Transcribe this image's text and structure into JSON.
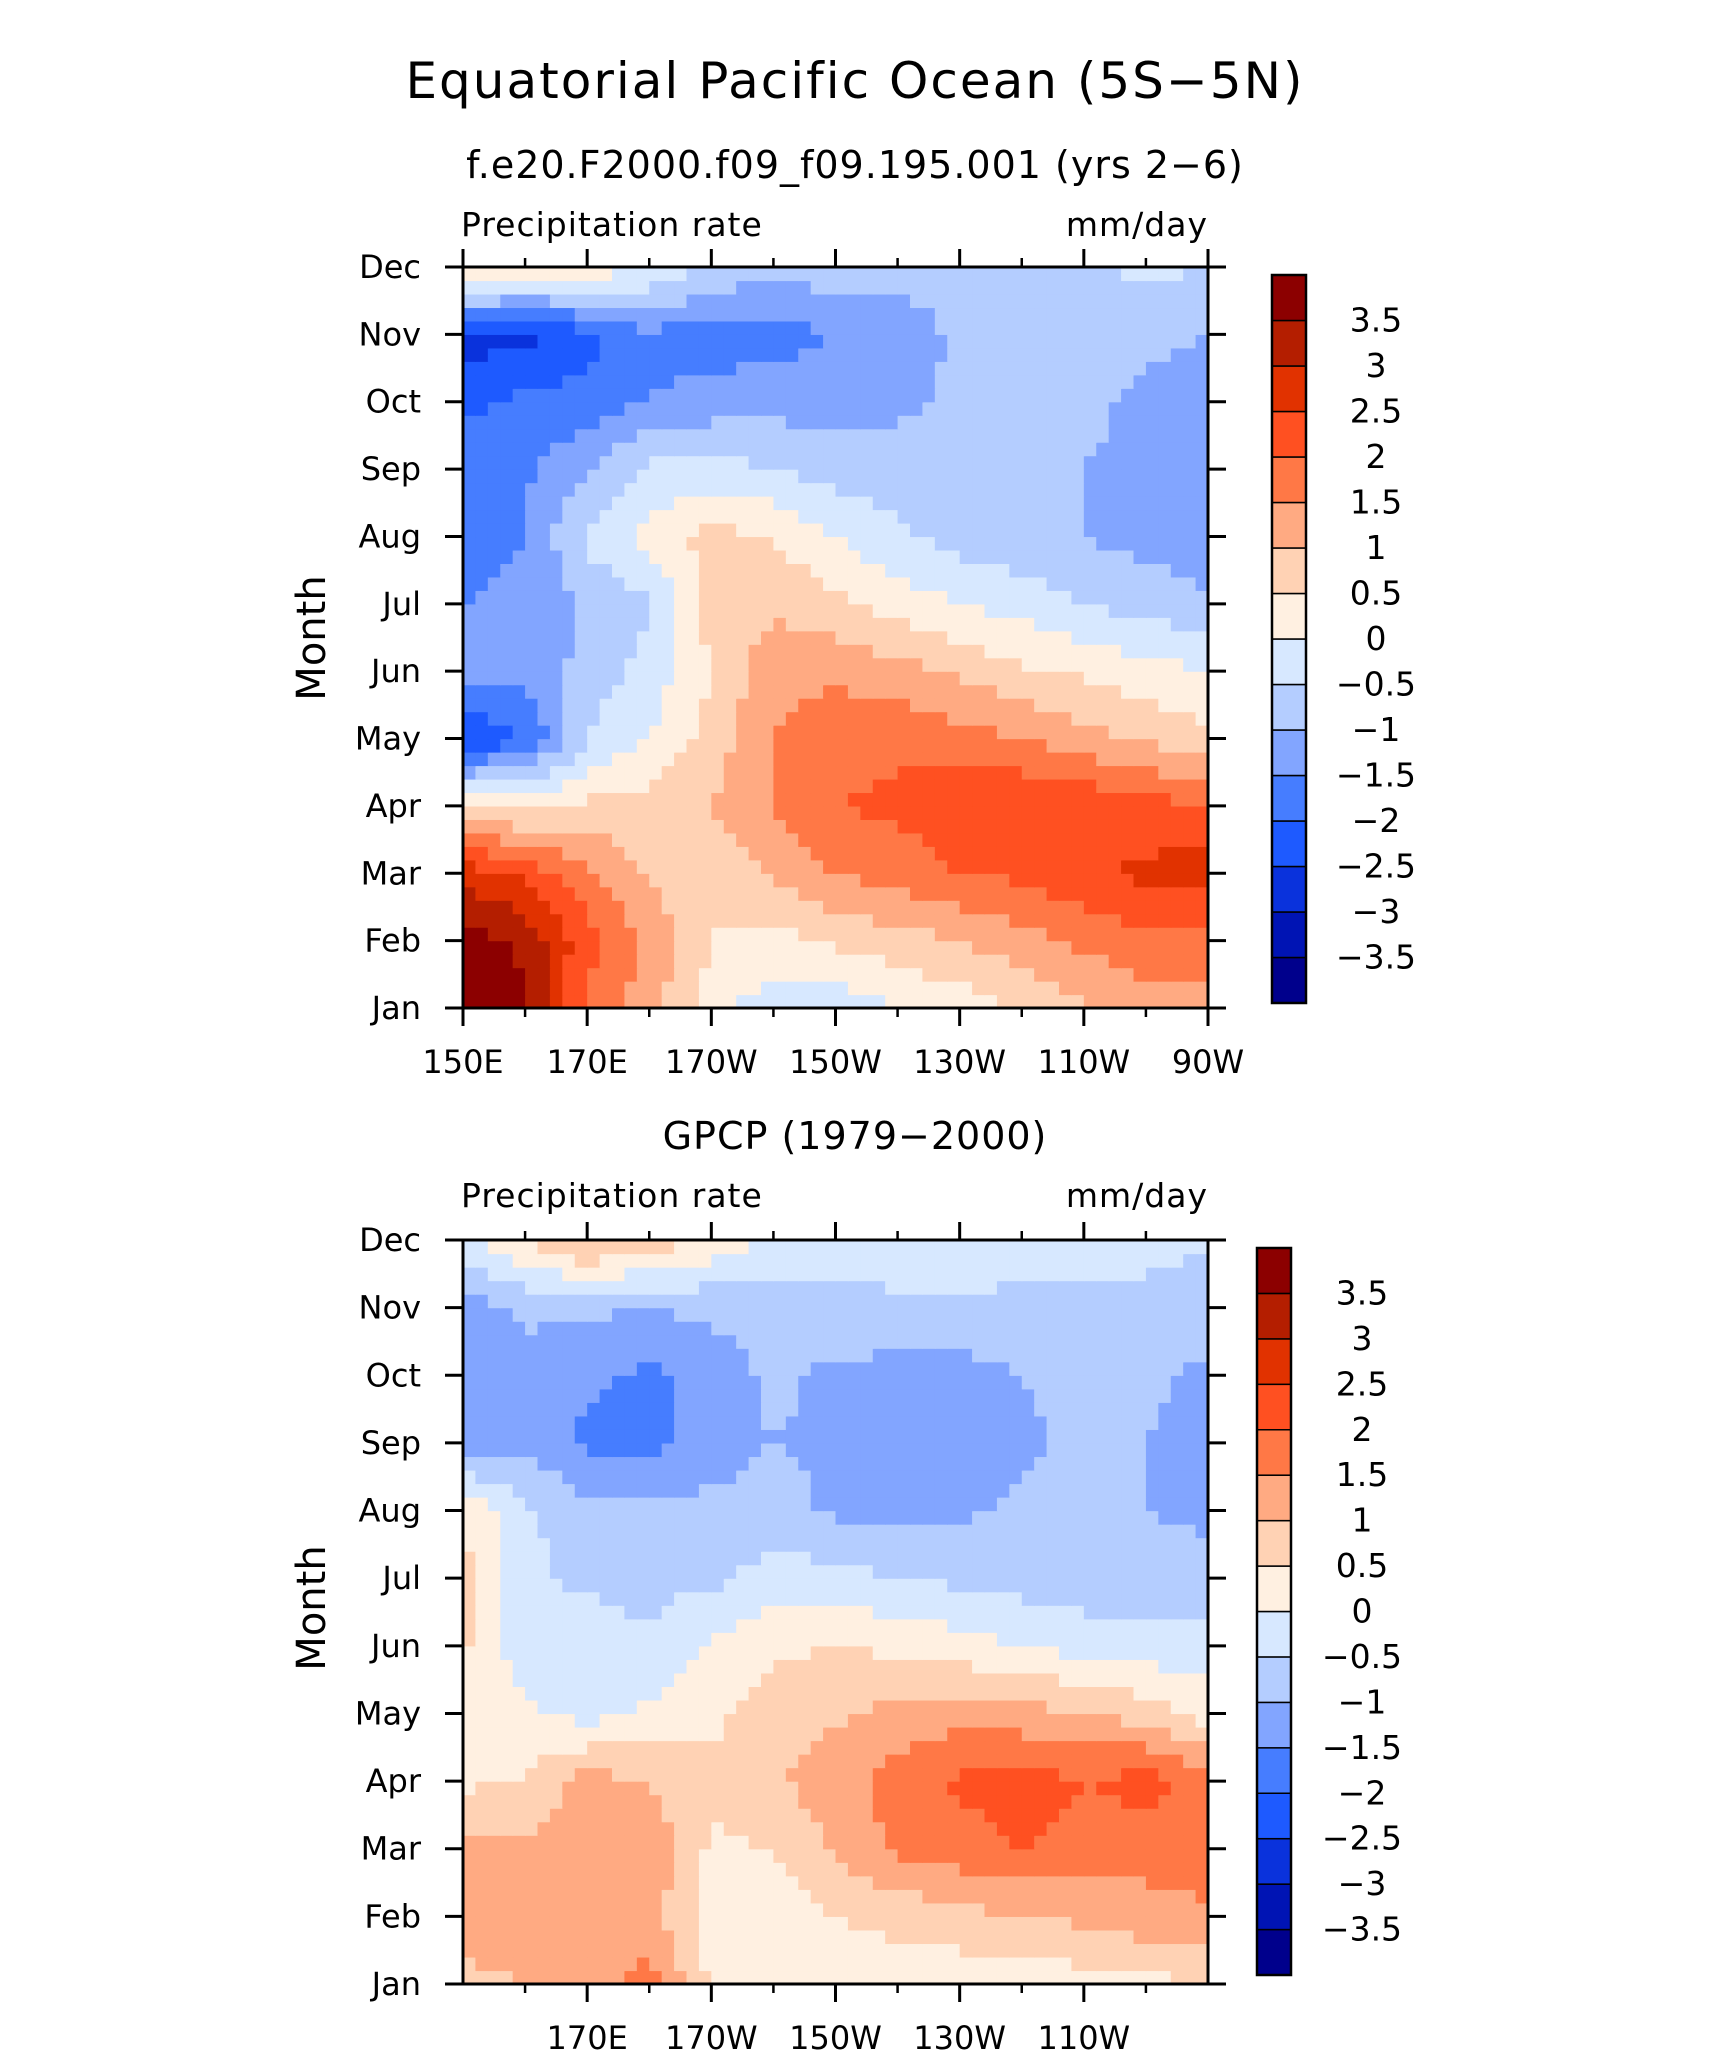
{
  "figure_title": "Equatorial Pacific Ocean (5S−5N)",
  "chart_data": [
    {
      "type": "heatmap",
      "title": "f.e20.F2000.f09_f09.195.001 (yrs 2−6)",
      "left_label": "Precipitation rate",
      "right_label": "mm/day",
      "ylabel": "Month",
      "xticks": [
        "150E",
        "170E",
        "170W",
        "150W",
        "130W",
        "110W",
        "90W"
      ],
      "x_tick_values": [
        150,
        170,
        190,
        210,
        230,
        250,
        270
      ],
      "x_minor_values": [
        160,
        180,
        200,
        220,
        240,
        260
      ],
      "xlim": [
        150,
        270
      ],
      "yticks": [
        "Jan",
        "Feb",
        "Mar",
        "Apr",
        "May",
        "Jun",
        "Jul",
        "Aug",
        "Sep",
        "Oct",
        "Nov",
        "Dec"
      ],
      "colorbar_labels": [
        "3.5",
        "3",
        "2.5",
        "2",
        "1.5",
        "1",
        "0.5",
        "0",
        "−0.5",
        "−1",
        "−1.5",
        "−2",
        "−2.5",
        "−3",
        "−3.5"
      ],
      "grid_lon": [
        150,
        160,
        170,
        180,
        190,
        200,
        210,
        220,
        230,
        240,
        250,
        260,
        270
      ],
      "values": [
        [
          3.8,
          3.6,
          1.8,
          1.2,
          0.2,
          -0.3,
          -0.3,
          0.0,
          0.2,
          0.6,
          0.9,
          1.2,
          1.3
        ],
        [
          3.7,
          3.4,
          2.2,
          1.4,
          0.5,
          0.3,
          0.6,
          0.8,
          1.0,
          1.3,
          1.6,
          1.9,
          1.8
        ],
        [
          2.8,
          2.4,
          1.6,
          0.9,
          0.6,
          1.1,
          1.5,
          1.7,
          2.0,
          2.1,
          2.4,
          2.6,
          2.8
        ],
        [
          0.5,
          0.3,
          0.6,
          0.7,
          1.0,
          1.5,
          2.0,
          2.1,
          2.3,
          2.5,
          2.4,
          2.2,
          2.0
        ],
        [
          -2.6,
          -2.0,
          -0.5,
          0.0,
          0.7,
          1.5,
          1.8,
          1.9,
          1.7,
          1.5,
          1.2,
          0.9,
          0.6
        ],
        [
          -1.2,
          -1.4,
          -0.8,
          -0.3,
          0.5,
          1.3,
          1.4,
          1.2,
          0.9,
          0.6,
          0.4,
          0.2,
          0.0
        ],
        [
          -1.5,
          -1.4,
          -0.9,
          -0.6,
          0.8,
          0.9,
          0.6,
          0.3,
          0.0,
          -0.2,
          -0.5,
          -0.7,
          -0.9
        ],
        [
          -1.7,
          -1.5,
          -0.4,
          0.2,
          0.7,
          0.5,
          0.0,
          -0.4,
          -0.7,
          -0.9,
          -1.0,
          -1.2,
          -1.3
        ],
        [
          -1.8,
          -1.6,
          -1.0,
          -0.4,
          -0.3,
          -0.5,
          -0.7,
          -0.8,
          -0.8,
          -0.8,
          -1.0,
          -1.2,
          -1.3
        ],
        [
          -2.1,
          -1.9,
          -1.8,
          -1.5,
          -1.3,
          -1.2,
          -1.2,
          -1.1,
          -0.9,
          -0.8,
          -0.8,
          -1.2,
          -1.3
        ],
        [
          -2.7,
          -2.7,
          -2.2,
          -1.6,
          -1.8,
          -1.7,
          -1.5,
          -1.3,
          -0.9,
          -0.8,
          -0.8,
          -0.8,
          -1.0
        ],
        [
          0.8,
          0.6,
          0.4,
          0.0,
          -0.6,
          -0.8,
          -0.7,
          -0.8,
          -0.8,
          -0.7,
          -0.6,
          -0.4,
          -0.5
        ]
      ]
    },
    {
      "type": "heatmap",
      "title": "GPCP (1979−2000)",
      "left_label": "Precipitation rate",
      "right_label": "mm/day",
      "ylabel": "Month",
      "xticks": [
        "170E",
        "170W",
        "150W",
        "130W",
        "110W"
      ],
      "x_tick_values": [
        170,
        190,
        210,
        230,
        250
      ],
      "x_minor_values": [
        160,
        180,
        200,
        220,
        240,
        260
      ],
      "xlim": [
        150,
        270
      ],
      "yticks": [
        "Jan",
        "Feb",
        "Mar",
        "Apr",
        "May",
        "Jun",
        "Jul",
        "Aug",
        "Sep",
        "Oct",
        "Nov",
        "Dec"
      ],
      "colorbar_labels": [
        "3.5",
        "3",
        "2.5",
        "2",
        "1.5",
        "1",
        "0.5",
        "0",
        "−0.5",
        "−1",
        "−1.5",
        "−2",
        "−2.5",
        "−3",
        "−3.5"
      ],
      "grid_lon": [
        150,
        160,
        170,
        180,
        190,
        200,
        210,
        220,
        230,
        240,
        250,
        260,
        270
      ],
      "values": [
        [
          0.8,
          1.0,
          1.2,
          1.7,
          0.4,
          0.1,
          0.2,
          0.3,
          0.2,
          0.1,
          0.3,
          0.4,
          0.4
        ],
        [
          1.4,
          1.2,
          1.3,
          1.2,
          0.3,
          0.2,
          0.5,
          0.6,
          0.8,
          1.0,
          1.1,
          1.3,
          1.5
        ],
        [
          1.2,
          1.1,
          1.3,
          1.4,
          0.4,
          0.5,
          1.1,
          1.6,
          1.8,
          2.0,
          1.8,
          1.7,
          1.6
        ],
        [
          0.4,
          0.5,
          1.2,
          1.0,
          0.6,
          0.9,
          1.3,
          1.7,
          2.1,
          2.2,
          2.0,
          2.2,
          1.8
        ],
        [
          0.2,
          0.1,
          -0.2,
          0.1,
          0.4,
          0.8,
          0.9,
          1.2,
          1.3,
          1.2,
          1.0,
          0.8,
          0.3
        ],
        [
          0.6,
          -0.3,
          -0.2,
          -0.4,
          0.1,
          0.4,
          0.5,
          0.4,
          0.2,
          0.0,
          -0.2,
          -0.3,
          -0.3
        ],
        [
          0.7,
          -0.4,
          -0.6,
          -0.7,
          -0.6,
          -0.3,
          -0.3,
          -0.5,
          -0.6,
          -0.7,
          -0.8,
          -0.9,
          -0.8
        ],
        [
          0.4,
          -0.4,
          -0.8,
          -0.8,
          -0.9,
          -0.8,
          -1.1,
          -1.1,
          -1.1,
          -0.9,
          -0.9,
          -1.0,
          -1.1
        ],
        [
          -1.3,
          -1.2,
          -1.6,
          -1.7,
          -1.2,
          -1.0,
          -1.1,
          -1.2,
          -1.2,
          -1.1,
          -0.9,
          -1.0,
          -1.2
        ],
        [
          -1.1,
          -1.2,
          -1.4,
          -1.6,
          -1.3,
          -0.9,
          -1.1,
          -1.2,
          -1.2,
          -1.0,
          -0.8,
          -0.9,
          -1.1
        ],
        [
          -1.3,
          -0.9,
          -0.9,
          -1.0,
          -0.9,
          -0.7,
          -0.7,
          -0.6,
          -0.6,
          -0.6,
          -0.6,
          -0.6,
          -0.8
        ],
        [
          -0.2,
          0.5,
          1.2,
          0.8,
          0.4,
          -0.2,
          -0.3,
          -0.2,
          -0.2,
          -0.3,
          -0.4,
          -0.4,
          -0.4
        ]
      ]
    }
  ],
  "palette": [
    "#00008c",
    "#0014b4",
    "#0a32dc",
    "#1e5aff",
    "#467dff",
    "#82a5ff",
    "#b4cdff",
    "#d7e8ff",
    "#fff0e1",
    "#ffd2b4",
    "#ffaa82",
    "#ff7846",
    "#ff5021",
    "#e13200",
    "#b41e00",
    "#8c0000"
  ]
}
